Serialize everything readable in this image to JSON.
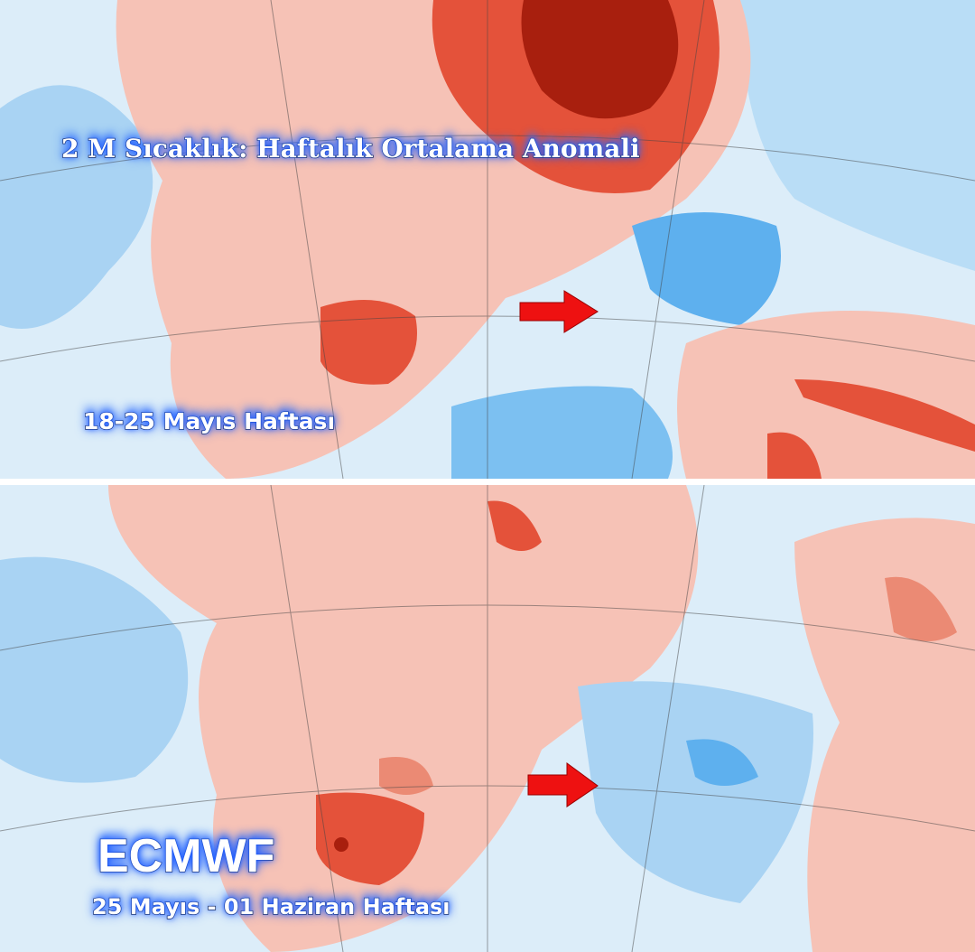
{
  "title": "2 M Sıcaklık: Haftalık Ortalama Anomali",
  "panels": [
    {
      "label": "18-25 Mayıs Haftası"
    },
    {
      "model": "ECMWF",
      "label": "25 Mayıs - 01 Haziran Haftası"
    }
  ]
}
